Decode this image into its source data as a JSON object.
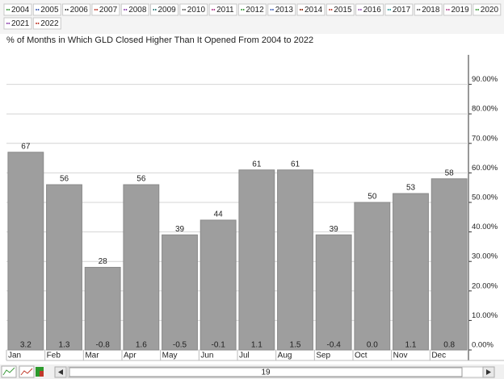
{
  "chart_data": {
    "type": "bar",
    "title": "% of Months in Which GLD Closed Higher Than It Opened From 2004 to 2022",
    "legend": [
      {
        "label": "2004",
        "color": "#3a9a3a"
      },
      {
        "label": "2005",
        "color": "#3b5bb5"
      },
      {
        "label": "2006",
        "color": "#333333"
      },
      {
        "label": "2007",
        "color": "#c0392b"
      },
      {
        "label": "2008",
        "color": "#8e44ad"
      },
      {
        "label": "2009",
        "color": "#2c7a7b"
      },
      {
        "label": "2010",
        "color": "#555555"
      },
      {
        "label": "2011",
        "color": "#b03a8a"
      },
      {
        "label": "2012",
        "color": "#3a9a3a"
      },
      {
        "label": "2013",
        "color": "#3b5bb5"
      },
      {
        "label": "2014",
        "color": "#8b2500"
      },
      {
        "label": "2015",
        "color": "#c0392b"
      },
      {
        "label": "2016",
        "color": "#8e44ad"
      },
      {
        "label": "2017",
        "color": "#2c9a9a"
      },
      {
        "label": "2018",
        "color": "#555555"
      },
      {
        "label": "2019",
        "color": "#b03a8a"
      },
      {
        "label": "2020",
        "color": "#3a9a3a"
      },
      {
        "label": "2021",
        "color": "#8e44ad"
      },
      {
        "label": "2022",
        "color": "#c0392b"
      }
    ],
    "categories": [
      "Jan",
      "Feb",
      "Mar",
      "Apr",
      "May",
      "Jun",
      "Jul",
      "Aug",
      "Sep",
      "Oct",
      "Nov",
      "Dec"
    ],
    "values": [
      67,
      56,
      28,
      56,
      39,
      44,
      61,
      61,
      39,
      50,
      53,
      58
    ],
    "color": "#9e9e9e",
    "averages": {
      "values": [
        3.2,
        1.3,
        -0.8,
        1.6,
        -0.5,
        -0.1,
        1.1,
        1.5,
        -0.4,
        0.0,
        1.1,
        0.8
      ],
      "value_labels": [
        "3.2",
        "1.3",
        "-0.8",
        "1.6",
        "-0.5",
        "-0.1",
        "1.1",
        "1.5",
        "-0.4",
        "0.0",
        "1.1",
        "0.8"
      ]
    },
    "ylim": [
      0,
      100
    ],
    "yticks": [
      {
        "value": 0,
        "label": "0.00%"
      },
      {
        "value": 10,
        "label": "10.00%"
      },
      {
        "value": 20,
        "label": "20.00%"
      },
      {
        "value": 30,
        "label": "30.00%"
      },
      {
        "value": 40,
        "label": "40.00%"
      },
      {
        "value": 50,
        "label": "50.00%"
      },
      {
        "value": 60,
        "label": "60.00%"
      },
      {
        "value": 70,
        "label": "70.00%"
      },
      {
        "value": 80,
        "label": "80.00%"
      },
      {
        "value": 90,
        "label": "90.00%"
      }
    ],
    "grid": true,
    "scrollbar_label": "19"
  }
}
